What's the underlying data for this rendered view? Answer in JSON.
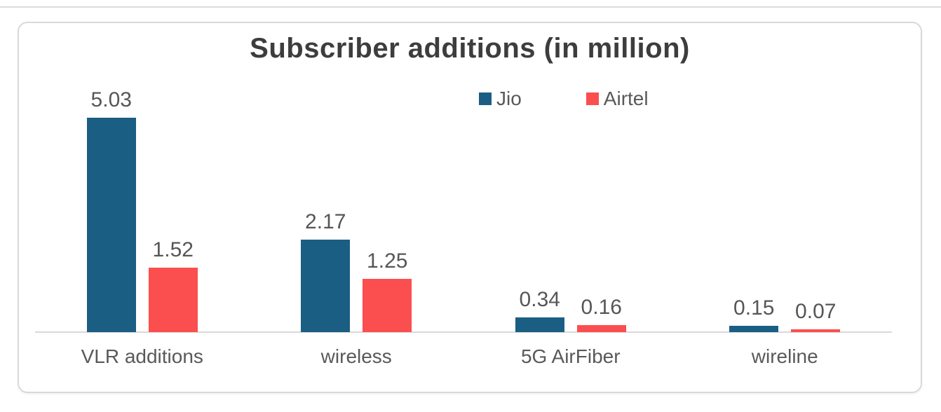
{
  "window": {
    "background": "#ffffff",
    "top_divider_color": "#dcdcdc"
  },
  "card": {
    "background": "#ffffff",
    "border_color": "#d9d9d9"
  },
  "chart_data": {
    "type": "bar",
    "title": "Subscriber additions (in million)",
    "title_color": "#3d3d3d",
    "categories": [
      "VLR additions",
      "wireless",
      "5G AirFiber",
      "wireline"
    ],
    "series": [
      {
        "name": "Jio",
        "color": "#1B5E83",
        "values": [
          5.03,
          2.17,
          0.34,
          0.15
        ]
      },
      {
        "name": "Airtel",
        "color": "#FB4E4E",
        "values": [
          1.52,
          1.25,
          0.16,
          0.07
        ]
      }
    ],
    "value_labels_visible": true,
    "value_label_decimals": 2,
    "value_label_color": "#565656",
    "category_label_color": "#595959",
    "legend_position": "top-center",
    "legend_text_color": "#595959",
    "gridlines": false,
    "y_axis_visible": false,
    "baseline_color": "#d9d9d9",
    "ylim": [
      0,
      5.5
    ]
  }
}
